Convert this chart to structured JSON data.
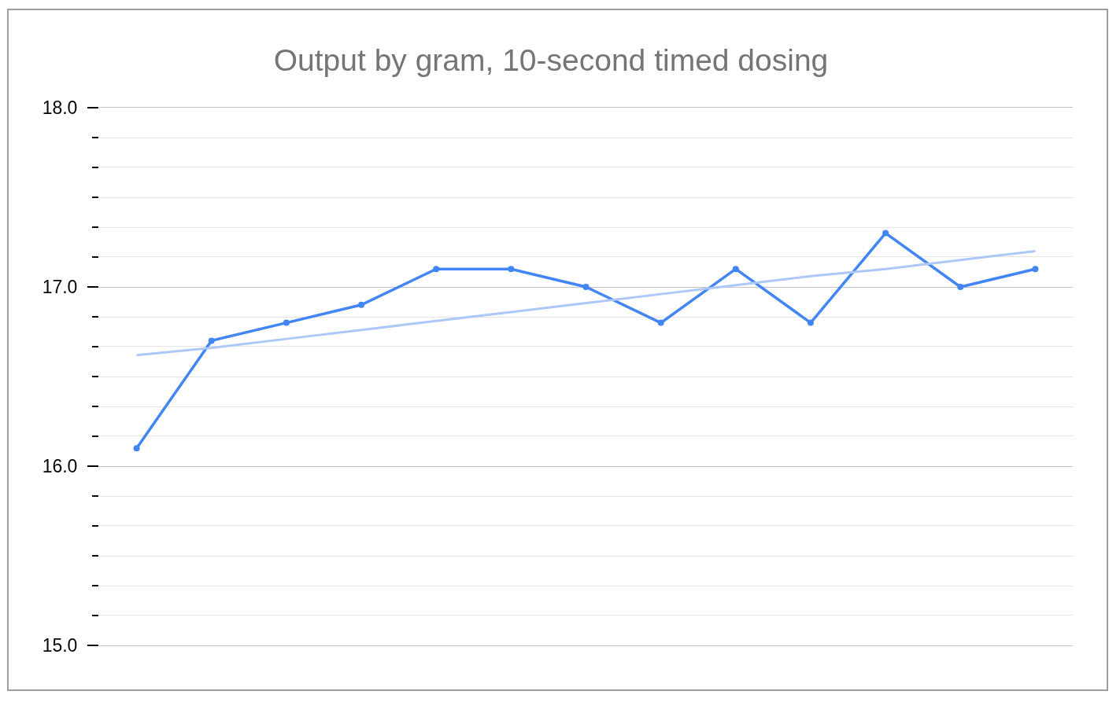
{
  "chart_data": {
    "type": "line",
    "title": "Output by gram, 10-second timed dosing",
    "categories": [
      null,
      null,
      null,
      null,
      null,
      null,
      null,
      null,
      null,
      null,
      null,
      null,
      null
    ],
    "series": [
      {
        "color": "#4285f4",
        "values": [
          16.1,
          16.7,
          16.8,
          16.9,
          17.1,
          17.1,
          17.0,
          16.8,
          17.1,
          16.8,
          17.3,
          17.0,
          17.1
        ]
      },
      {
        "type": "line",
        "marker": "none",
        "color": "#adc8f8",
        "values": [
          16.62,
          16.66,
          16.71,
          16.76,
          16.81,
          16.86,
          16.91,
          16.96,
          17.01,
          17.06,
          17.1,
          17.15,
          17.2
        ]
      }
    ],
    "ylim": [
      15,
      18
    ],
    "yticks": [
      {
        "value": 15,
        "label": "15.0"
      },
      {
        "value": 15.1667,
        "label": null
      },
      {
        "value": 15.3333,
        "label": null
      },
      {
        "value": 15.5,
        "label": null
      },
      {
        "value": 15.6667,
        "label": null
      },
      {
        "value": 15.8333,
        "label": null
      },
      {
        "value": 16,
        "label": "16.0"
      },
      {
        "value": 16.1667,
        "label": null
      },
      {
        "value": 16.3333,
        "label": null
      },
      {
        "value": 16.5,
        "label": null
      },
      {
        "value": 16.6667,
        "label": null
      },
      {
        "value": 16.8333,
        "label": null
      },
      {
        "value": 17,
        "label": "17.0"
      },
      {
        "value": 17.1667,
        "label": null
      },
      {
        "value": 17.3333,
        "label": null
      },
      {
        "value": 17.5,
        "label": null
      },
      {
        "value": 17.6667,
        "label": null
      },
      {
        "value": 17.8333,
        "label": null
      },
      {
        "value": 18,
        "label": "18.0"
      }
    ],
    "grid": "y",
    "tick_labels": "y",
    "marker": "circle",
    "line_style": "solid"
  }
}
